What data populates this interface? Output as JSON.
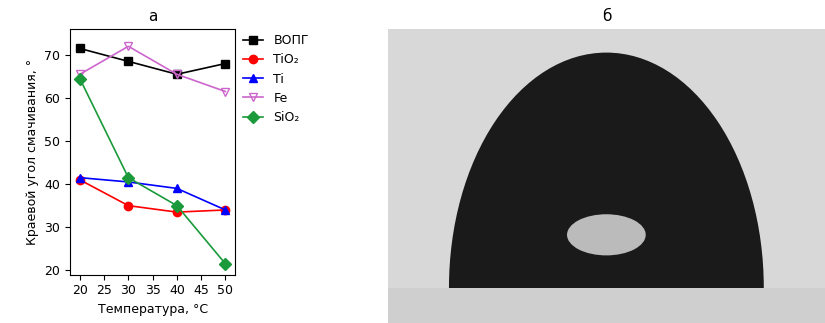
{
  "chart_data": {
    "type": "line",
    "title": "а",
    "x_label": "Температура, °C",
    "y_label": "Краевой угол смачивания, °",
    "x": [
      20,
      30,
      40,
      50
    ],
    "series": [
      {
        "name": "ВОПГ",
        "color": "#000000",
        "marker": "square",
        "values": [
          71.5,
          68.5,
          65.5,
          68
        ]
      },
      {
        "name": "TiO₂",
        "color": "#ff0000",
        "marker": "circle",
        "values": [
          41,
          35,
          33.5,
          34
        ]
      },
      {
        "name": "Ti",
        "color": "#0000ff",
        "marker": "triangle_up",
        "values": [
          41.5,
          40.5,
          39,
          34
        ]
      },
      {
        "name": "Fe",
        "color": "#cc66cc",
        "marker": "triangle_down_open",
        "values": [
          65.5,
          72,
          65.5,
          61.5
        ]
      },
      {
        "name": "SiO₂",
        "color": "#1a9a3a",
        "marker": "diamond",
        "values": [
          64.5,
          41.5,
          35,
          21.5
        ]
      }
    ],
    "xlim": [
      18,
      52
    ],
    "xticks": [
      20,
      25,
      30,
      35,
      40,
      45,
      50
    ],
    "ylim": [
      19,
      76
    ],
    "yticks": [
      20,
      30,
      40,
      50,
      60,
      70
    ],
    "legend": "upper left",
    "grid": false
  },
  "image": {
    "title": "б"
  }
}
